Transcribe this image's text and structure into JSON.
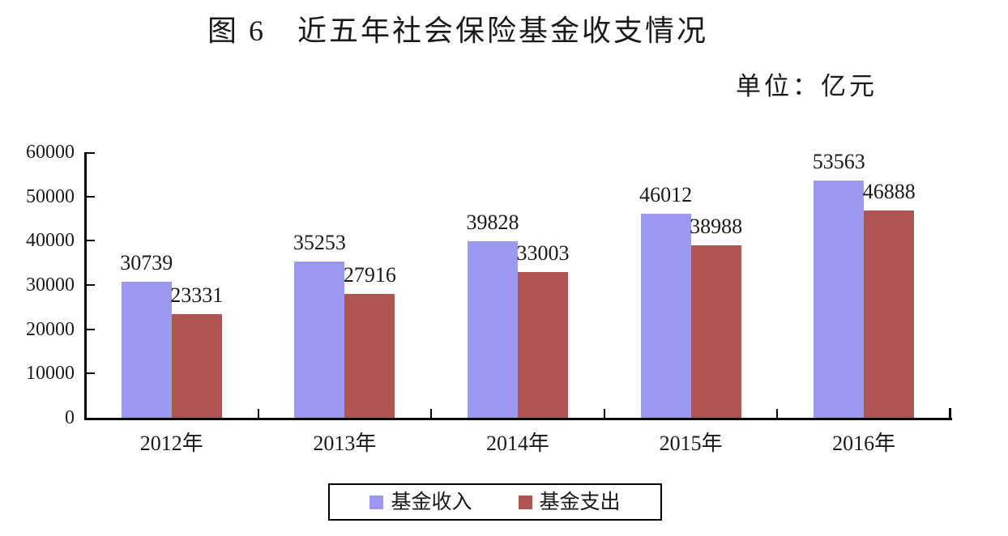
{
  "title": "图 6　近五年社会保险基金收支情况",
  "unit_label": "单位：亿元",
  "chart_data": {
    "type": "bar",
    "figure_label": "图 6",
    "title": "近五年社会保险基金收支情况",
    "unit": "亿元",
    "categories": [
      "2012年",
      "2013年",
      "2014年",
      "2015年",
      "2016年"
    ],
    "series": [
      {
        "name": "基金收入",
        "color": "#9b99f0",
        "values": [
          30739,
          35253,
          39828,
          46012,
          53563
        ]
      },
      {
        "name": "基金支出",
        "color": "#b05551",
        "values": [
          23331,
          27916,
          33003,
          38988,
          46888
        ]
      }
    ],
    "ylim": [
      0,
      60000
    ],
    "yticks": [
      0,
      10000,
      20000,
      30000,
      40000,
      50000,
      60000
    ],
    "grid": false,
    "data_labels": true,
    "legend_position": "bottom",
    "axis_color": "#000000",
    "text_color": "#1a1a1a"
  }
}
